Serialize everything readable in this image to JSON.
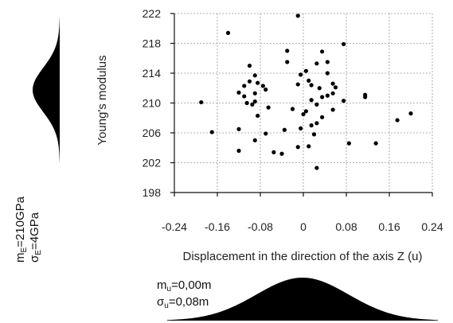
{
  "chart_data": {
    "type": "scatter",
    "title": "",
    "xlabel": "Displacement in the direction of the axis Z (u)",
    "ylabel": "Young's modulus",
    "xlim": [
      -0.24,
      0.24
    ],
    "ylim": [
      198,
      222
    ],
    "xticks": [
      -0.24,
      -0.16,
      -0.08,
      0,
      0.08,
      0.16,
      0.24
    ],
    "xtick_labels": [
      "-0.24",
      "-0.16",
      "-0.08",
      "0",
      "0.08",
      "0.16",
      "0.24"
    ],
    "yticks": [
      198,
      202,
      206,
      210,
      214,
      218,
      222
    ],
    "ytick_labels": [
      "198",
      "202",
      "206",
      "210",
      "214",
      "218",
      "222"
    ],
    "grid": true,
    "points": [
      {
        "x": -0.01,
        "y": 221.7
      },
      {
        "x": -0.14,
        "y": 219.4
      },
      {
        "x": -0.03,
        "y": 217.0
      },
      {
        "x": 0.075,
        "y": 217.9
      },
      {
        "x": 0.01,
        "y": 213.0
      },
      {
        "x": -0.03,
        "y": 215.5
      },
      {
        "x": 0.025,
        "y": 215.3
      },
      {
        "x": -0.1,
        "y": 215.0
      },
      {
        "x": 0.035,
        "y": 216.9
      },
      {
        "x": 0.045,
        "y": 215.5
      },
      {
        "x": 0.005,
        "y": 214.3
      },
      {
        "x": 0.045,
        "y": 214.0
      },
      {
        "x": -0.005,
        "y": 213.8
      },
      {
        "x": -0.09,
        "y": 213.7
      },
      {
        "x": -0.12,
        "y": 211.4
      },
      {
        "x": -0.11,
        "y": 212.3
      },
      {
        "x": -0.1,
        "y": 212.9
      },
      {
        "x": -0.085,
        "y": 212.7
      },
      {
        "x": -0.075,
        "y": 212.3
      },
      {
        "x": -0.07,
        "y": 211.8
      },
      {
        "x": -0.11,
        "y": 210.9
      },
      {
        "x": -0.09,
        "y": 211.3
      },
      {
        "x": -0.095,
        "y": 209.8
      },
      {
        "x": -0.105,
        "y": 210.0
      },
      {
        "x": -0.09,
        "y": 210.2
      },
      {
        "x": -0.19,
        "y": 210.1
      },
      {
        "x": -0.065,
        "y": 209.4
      },
      {
        "x": -0.085,
        "y": 208.3
      },
      {
        "x": -0.02,
        "y": 209.2
      },
      {
        "x": -0.01,
        "y": 212.5
      },
      {
        "x": 0.015,
        "y": 212.4
      },
      {
        "x": 0.03,
        "y": 212.0
      },
      {
        "x": 0.055,
        "y": 212.6
      },
      {
        "x": 0.06,
        "y": 212.1
      },
      {
        "x": 0.055,
        "y": 211.3
      },
      {
        "x": 0.045,
        "y": 211.0
      },
      {
        "x": 0.035,
        "y": 210.8
      },
      {
        "x": 0.015,
        "y": 210.4
      },
      {
        "x": 0.025,
        "y": 209.8
      },
      {
        "x": 0.075,
        "y": 210.3
      },
      {
        "x": 0.115,
        "y": 211.1
      },
      {
        "x": 0.115,
        "y": 210.8
      },
      {
        "x": 0.055,
        "y": 209.1
      },
      {
        "x": 0.005,
        "y": 208.9
      },
      {
        "x": 0.0,
        "y": 208.5
      },
      {
        "x": 0.035,
        "y": 208.1
      },
      {
        "x": 0.025,
        "y": 207.3
      },
      {
        "x": 0.015,
        "y": 207.0
      },
      {
        "x": -0.005,
        "y": 206.6
      },
      {
        "x": -0.035,
        "y": 206.4
      },
      {
        "x": -0.12,
        "y": 206.5
      },
      {
        "x": -0.17,
        "y": 206.1
      },
      {
        "x": -0.07,
        "y": 205.9
      },
      {
        "x": 0.02,
        "y": 205.8
      },
      {
        "x": -0.09,
        "y": 205.0
      },
      {
        "x": 0.085,
        "y": 204.6
      },
      {
        "x": 0.135,
        "y": 204.6
      },
      {
        "x": 0.175,
        "y": 207.7
      },
      {
        "x": 0.2,
        "y": 208.6
      },
      {
        "x": -0.12,
        "y": 203.6
      },
      {
        "x": -0.055,
        "y": 203.4
      },
      {
        "x": -0.04,
        "y": 203.2
      },
      {
        "x": -0.01,
        "y": 204.1
      },
      {
        "x": 0.01,
        "y": 204.2
      },
      {
        "x": 0.025,
        "y": 201.3
      }
    ]
  },
  "distributions": {
    "E": {
      "m_label_main": "m",
      "m_label_sub": "E",
      "m_value": "=210GPa",
      "s_label_main": "σ",
      "s_label_sub": "E",
      "s_value": "=4GPa"
    },
    "u": {
      "m_label_main": "m",
      "m_label_sub": "u",
      "m_value": "=0,00m",
      "s_label_main": "σ",
      "s_label_sub": "u",
      "s_value": "=0,08m"
    }
  }
}
